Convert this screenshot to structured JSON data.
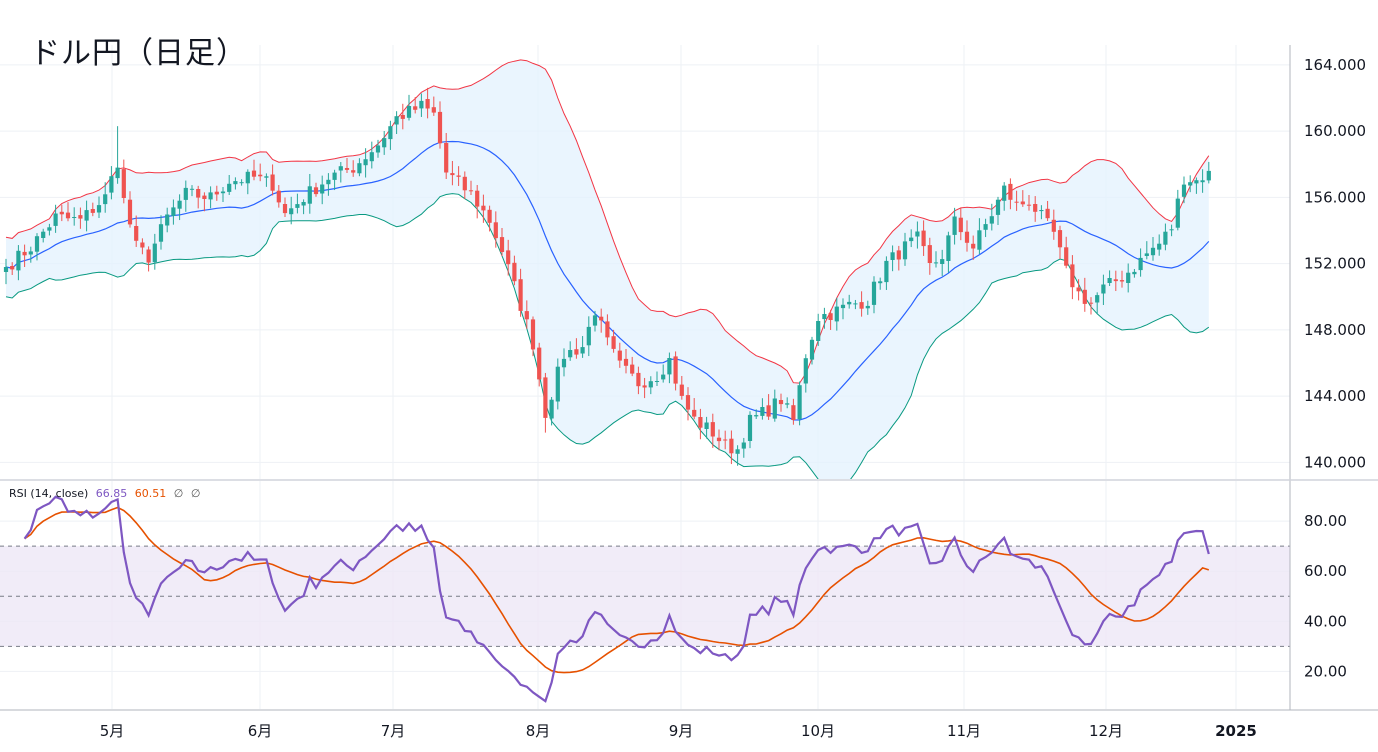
{
  "title": "ドル円（日足）",
  "rsi_legend": {
    "label": "RSI (14, close)",
    "rsi_value": "66.85",
    "ma_value": "60.51",
    "icon1": "∅",
    "icon2": "∅"
  },
  "colors": {
    "up": "#26a69a",
    "down": "#ef5350",
    "bb_basis": "#2962ff",
    "bb_upper": "#f23645",
    "bb_lower": "#089981",
    "bb_fill": "#e3f2fd",
    "rsi": "#7e57c2",
    "rsi_ma": "#e65100",
    "rsi_band": "#ede7f6"
  },
  "chart_data": [
    {
      "type": "candlestick",
      "title": "ドル円（日足）",
      "y_ticks": [
        "164.000",
        "160.000",
        "156.000",
        "152.000",
        "148.000",
        "144.000",
        "140.000"
      ],
      "ylim": [
        139.0,
        165.2
      ],
      "x_labels": [
        "5月",
        "6月",
        "7月",
        "8月",
        "9月",
        "10月",
        "11月",
        "12月",
        "2025"
      ],
      "closes_anchor_points": [
        [
          0,
          151.8
        ],
        [
          4,
          153.0
        ],
        [
          8,
          154.8
        ],
        [
          12,
          154.6
        ],
        [
          16,
          156.0
        ],
        [
          18,
          158.2
        ],
        [
          19,
          155.8
        ],
        [
          21,
          153.0
        ],
        [
          23,
          152.4
        ],
        [
          26,
          154.8
        ],
        [
          29,
          156.2
        ],
        [
          33,
          156.0
        ],
        [
          36,
          157.0
        ],
        [
          40,
          157.2
        ],
        [
          43,
          156.8
        ],
        [
          45,
          155.0
        ],
        [
          48,
          156.0
        ],
        [
          52,
          157.2
        ],
        [
          56,
          157.8
        ],
        [
          60,
          159.2
        ],
        [
          63,
          160.8
        ],
        [
          67,
          161.5
        ],
        [
          69,
          161.0
        ],
        [
          71,
          157.5
        ],
        [
          75,
          156.2
        ],
        [
          78,
          154.6
        ],
        [
          80,
          152.8
        ],
        [
          83,
          149.5
        ],
        [
          85,
          147.2
        ],
        [
          87,
          143.0
        ],
        [
          90,
          146.5
        ],
        [
          93,
          147.0
        ],
        [
          95,
          149.2
        ],
        [
          97,
          147.2
        ],
        [
          99,
          145.8
        ],
        [
          102,
          144.8
        ],
        [
          105,
          145.3
        ],
        [
          107,
          146.2
        ],
        [
          109,
          143.8
        ],
        [
          111,
          142.6
        ],
        [
          114,
          141.8
        ],
        [
          116,
          141.0
        ],
        [
          118,
          140.8
        ],
        [
          120,
          142.5
        ],
        [
          123,
          143.2
        ],
        [
          125,
          143.8
        ],
        [
          127,
          142.5
        ],
        [
          129,
          146.5
        ],
        [
          131,
          148.8
        ],
        [
          133,
          149.0
        ],
        [
          136,
          149.5
        ],
        [
          139,
          149.8
        ],
        [
          142,
          152.0
        ],
        [
          145,
          153.0
        ],
        [
          147,
          153.5
        ],
        [
          149,
          151.8
        ],
        [
          151,
          152.5
        ],
        [
          153,
          154.5
        ],
        [
          156,
          153.0
        ],
        [
          159,
          155.0
        ],
        [
          161,
          156.5
        ],
        [
          163,
          155.5
        ],
        [
          165,
          155.8
        ],
        [
          167,
          154.8
        ],
        [
          169,
          153.8
        ],
        [
          171,
          151.5
        ],
        [
          173,
          150.2
        ],
        [
          175,
          149.6
        ],
        [
          177,
          150.5
        ],
        [
          180,
          151.2
        ],
        [
          182,
          151.8
        ],
        [
          184,
          152.6
        ],
        [
          186,
          153.2
        ],
        [
          188,
          154.2
        ],
        [
          190,
          157.2
        ],
        [
          192,
          157.0
        ],
        [
          194,
          157.6
        ]
      ],
      "candle_count": 195,
      "bollinger_bands": {
        "length": 20,
        "basis": "blue",
        "upper": "red",
        "lower": "teal"
      }
    },
    {
      "type": "line",
      "title": "RSI (14, close)",
      "y_ticks": [
        "80.00",
        "60.00",
        "40.00",
        "20.00"
      ],
      "ylim": [
        5,
        96
      ],
      "levels": [
        70,
        50,
        30
      ],
      "series": [
        {
          "name": "RSI",
          "value": 66.85
        },
        {
          "name": "RSI MA",
          "value": 60.51
        }
      ]
    }
  ]
}
